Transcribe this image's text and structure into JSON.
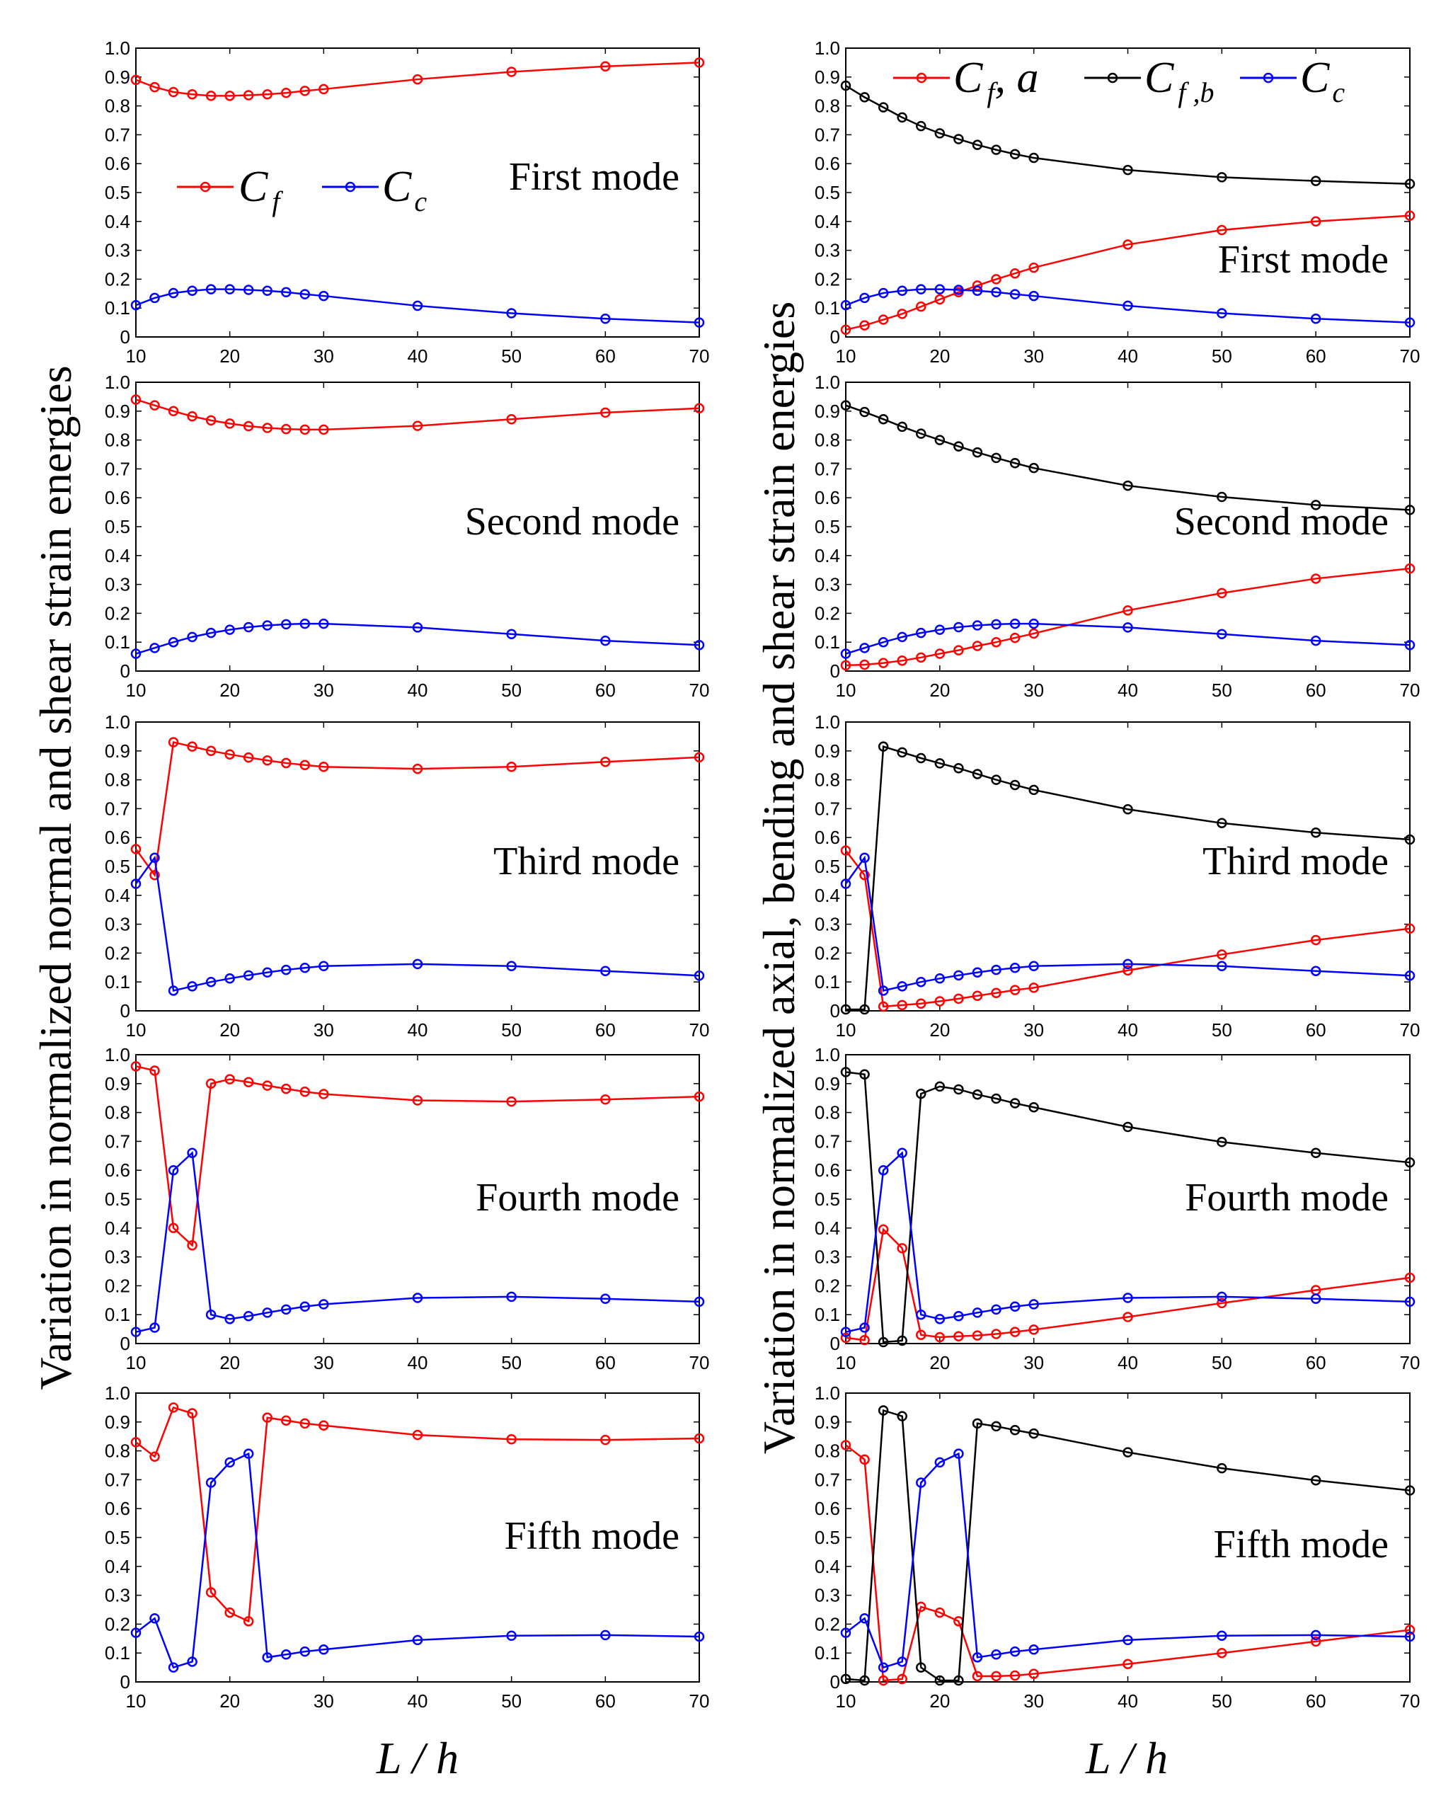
{
  "chart_data": {
    "type": "line",
    "x": [
      10,
      12,
      14,
      16,
      18,
      20,
      22,
      24,
      26,
      28,
      30,
      40,
      50,
      60,
      70
    ],
    "xticks": [
      "10",
      "20",
      "30",
      "40",
      "50",
      "60",
      "70"
    ],
    "yticks": [
      "0",
      "0.1",
      "0.2",
      "0.3",
      "0.4",
      "0.5",
      "0.6",
      "0.7",
      "0.8",
      "0.9",
      "1.0"
    ],
    "xlim": [
      10,
      70
    ],
    "ylim": [
      0,
      1
    ],
    "xlabel": "L / h",
    "left_ylabel": "Variation in normalized normal and shear strain energies",
    "right_ylabel": "Variation in normalized axial, bending and shear strain energies",
    "left_legend": {
      "cf": "C",
      "cf_sub": "f",
      "cc": "C",
      "cc_sub": "c"
    },
    "right_legend": {
      "cfa": "C",
      "cfa_sub": "f",
      "cfa_suffix": ", a",
      "cfb": "C",
      "cfb_sub": "f ,b",
      "cc": "C",
      "cc_sub": "c"
    },
    "colors": {
      "cf": "#ff0000",
      "cfa": "#ff0000",
      "cfb": "#000000",
      "cc": "#0000ff"
    },
    "modes": [
      "First mode",
      "Second mode",
      "Third mode",
      "Fourth mode",
      "Fifth mode"
    ],
    "left": [
      {
        "mode": "First mode",
        "series": [
          {
            "name": "Cf",
            "values": [
              0.89,
              0.865,
              0.848,
              0.84,
              0.835,
              0.835,
              0.837,
              0.84,
              0.845,
              0.852,
              0.858,
              0.892,
              0.918,
              0.937,
              0.95
            ]
          },
          {
            "name": "Cc",
            "values": [
              0.11,
              0.135,
              0.152,
              0.16,
              0.165,
              0.165,
              0.163,
              0.16,
              0.155,
              0.148,
              0.142,
              0.108,
              0.082,
              0.063,
              0.05
            ]
          }
        ]
      },
      {
        "mode": "Second mode",
        "series": [
          {
            "name": "Cf",
            "values": [
              0.94,
              0.92,
              0.9,
              0.882,
              0.868,
              0.857,
              0.848,
              0.842,
              0.838,
              0.836,
              0.836,
              0.849,
              0.872,
              0.895,
              0.91
            ]
          },
          {
            "name": "Cc",
            "values": [
              0.06,
              0.08,
              0.1,
              0.118,
              0.132,
              0.143,
              0.152,
              0.158,
              0.162,
              0.164,
              0.164,
              0.151,
              0.128,
              0.105,
              0.09
            ]
          }
        ]
      },
      {
        "mode": "Third mode",
        "series": [
          {
            "name": "Cf",
            "values": [
              0.56,
              0.47,
              0.93,
              0.915,
              0.9,
              0.888,
              0.877,
              0.867,
              0.858,
              0.851,
              0.845,
              0.838,
              0.845,
              0.862,
              0.878
            ]
          },
          {
            "name": "Cc",
            "values": [
              0.44,
              0.53,
              0.07,
              0.085,
              0.1,
              0.112,
              0.123,
              0.133,
              0.142,
              0.149,
              0.155,
              0.162,
              0.155,
              0.138,
              0.122
            ]
          }
        ]
      },
      {
        "mode": "Fourth mode",
        "series": [
          {
            "name": "Cf",
            "values": [
              0.96,
              0.945,
              0.4,
              0.34,
              0.9,
              0.915,
              0.905,
              0.893,
              0.882,
              0.872,
              0.864,
              0.842,
              0.838,
              0.845,
              0.855
            ]
          },
          {
            "name": "Cc",
            "values": [
              0.04,
              0.055,
              0.6,
              0.66,
              0.1,
              0.085,
              0.095,
              0.107,
              0.118,
              0.128,
              0.136,
              0.158,
              0.162,
              0.155,
              0.145
            ]
          }
        ]
      },
      {
        "mode": "Fifth mode",
        "series": [
          {
            "name": "Cf",
            "values": [
              0.83,
              0.78,
              0.95,
              0.93,
              0.31,
              0.24,
              0.21,
              0.915,
              0.905,
              0.895,
              0.888,
              0.855,
              0.84,
              0.838,
              0.843
            ]
          },
          {
            "name": "Cc",
            "values": [
              0.17,
              0.22,
              0.05,
              0.07,
              0.69,
              0.76,
              0.79,
              0.085,
              0.095,
              0.105,
              0.112,
              0.145,
              0.16,
              0.162,
              0.157
            ]
          }
        ]
      }
    ],
    "right": [
      {
        "mode": "First mode",
        "series": [
          {
            "name": "Cf,a",
            "values": [
              0.025,
              0.04,
              0.06,
              0.08,
              0.105,
              0.13,
              0.155,
              0.178,
              0.2,
              0.22,
              0.24,
              0.32,
              0.37,
              0.4,
              0.42
            ]
          },
          {
            "name": "Cf,b",
            "values": [
              0.87,
              0.83,
              0.795,
              0.76,
              0.73,
              0.705,
              0.685,
              0.665,
              0.648,
              0.633,
              0.62,
              0.578,
              0.553,
              0.54,
              0.53
            ]
          },
          {
            "name": "Cc",
            "values": [
              0.11,
              0.135,
              0.152,
              0.16,
              0.165,
              0.165,
              0.163,
              0.16,
              0.155,
              0.148,
              0.142,
              0.108,
              0.082,
              0.063,
              0.05
            ]
          }
        ]
      },
      {
        "mode": "Second mode",
        "series": [
          {
            "name": "Cf,a",
            "values": [
              0.02,
              0.022,
              0.028,
              0.036,
              0.047,
              0.06,
              0.072,
              0.087,
              0.1,
              0.115,
              0.13,
              0.21,
              0.27,
              0.32,
              0.355
            ]
          },
          {
            "name": "Cf,b",
            "values": [
              0.92,
              0.897,
              0.872,
              0.846,
              0.822,
              0.8,
              0.778,
              0.757,
              0.738,
              0.72,
              0.703,
              0.642,
              0.603,
              0.575,
              0.558
            ]
          },
          {
            "name": "Cc",
            "values": [
              0.06,
              0.08,
              0.1,
              0.118,
              0.132,
              0.143,
              0.152,
              0.158,
              0.162,
              0.164,
              0.164,
              0.151,
              0.128,
              0.105,
              0.09
            ]
          }
        ]
      },
      {
        "mode": "Third mode",
        "series": [
          {
            "name": "Cf,a",
            "values": [
              0.555,
              0.47,
              0.015,
              0.02,
              0.025,
              0.033,
              0.042,
              0.052,
              0.062,
              0.072,
              0.08,
              0.14,
              0.195,
              0.245,
              0.285
            ]
          },
          {
            "name": "Cf,b",
            "values": [
              0.005,
              0.005,
              0.915,
              0.895,
              0.875,
              0.857,
              0.84,
              0.82,
              0.8,
              0.782,
              0.765,
              0.698,
              0.65,
              0.617,
              0.593
            ]
          },
          {
            "name": "Cc",
            "values": [
              0.44,
              0.53,
              0.07,
              0.085,
              0.1,
              0.112,
              0.123,
              0.133,
              0.142,
              0.149,
              0.155,
              0.162,
              0.155,
              0.138,
              0.122
            ]
          }
        ]
      },
      {
        "mode": "Fourth mode",
        "series": [
          {
            "name": "Cf,a",
            "values": [
              0.02,
              0.012,
              0.395,
              0.33,
              0.03,
              0.022,
              0.025,
              0.028,
              0.033,
              0.04,
              0.048,
              0.092,
              0.14,
              0.185,
              0.228
            ]
          },
          {
            "name": "Cf,b",
            "values": [
              0.94,
              0.932,
              0.005,
              0.01,
              0.865,
              0.89,
              0.88,
              0.862,
              0.848,
              0.832,
              0.818,
              0.75,
              0.698,
              0.66,
              0.627
            ]
          },
          {
            "name": "Cc",
            "values": [
              0.04,
              0.055,
              0.6,
              0.66,
              0.1,
              0.085,
              0.095,
              0.107,
              0.118,
              0.128,
              0.136,
              0.158,
              0.162,
              0.155,
              0.145
            ]
          }
        ]
      },
      {
        "mode": "Fifth mode",
        "series": [
          {
            "name": "Cf,a",
            "values": [
              0.82,
              0.77,
              0.005,
              0.01,
              0.26,
              0.24,
              0.21,
              0.02,
              0.02,
              0.022,
              0.028,
              0.062,
              0.1,
              0.14,
              0.18
            ]
          },
          {
            "name": "Cf,b",
            "values": [
              0.01,
              0.005,
              0.94,
              0.92,
              0.05,
              0.005,
              0.005,
              0.895,
              0.885,
              0.872,
              0.86,
              0.795,
              0.74,
              0.698,
              0.663
            ]
          },
          {
            "name": "Cc",
            "values": [
              0.17,
              0.22,
              0.05,
              0.07,
              0.69,
              0.76,
              0.79,
              0.085,
              0.095,
              0.105,
              0.112,
              0.145,
              0.16,
              0.162,
              0.157
            ]
          }
        ]
      }
    ]
  }
}
